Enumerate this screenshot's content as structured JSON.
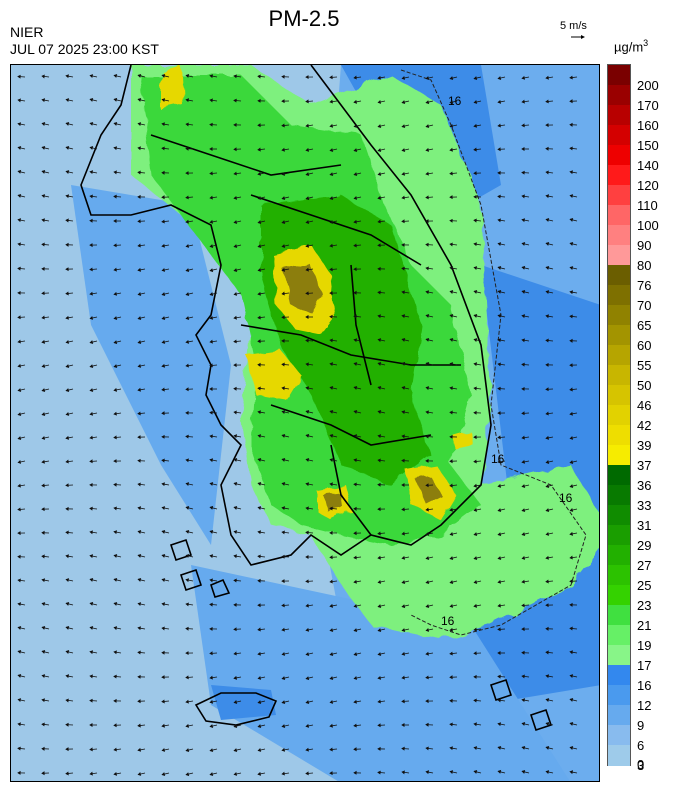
{
  "header": {
    "title": "PM-2.5",
    "organization": "NIER",
    "timestamp": "JUL 07 2025 23:00 KST",
    "wind_scale_label": "5 m/s",
    "unit_base": "µg/m",
    "unit_exp": "3"
  },
  "map": {
    "contour_label": "16"
  },
  "legend": {
    "labels": [
      "200",
      "170",
      "160",
      "150",
      "140",
      "120",
      "110",
      "100",
      "90",
      "80",
      "76",
      "70",
      "65",
      "60",
      "55",
      "50",
      "46",
      "42",
      "39",
      "37",
      "36",
      "33",
      "31",
      "29",
      "27",
      "25",
      "23",
      "21",
      "19",
      "17",
      "16",
      "12",
      "9",
      "6",
      "3",
      "0"
    ],
    "colors": [
      "#7a0000",
      "#9a0000",
      "#b80000",
      "#d40000",
      "#ee0000",
      "#ff1a1a",
      "#ff4040",
      "#ff6666",
      "#ff8080",
      "#ff9999",
      "#6b5e00",
      "#7e7000",
      "#908200",
      "#a39400",
      "#b6a500",
      "#c8b600",
      "#d6c400",
      "#e2d200",
      "#eede00",
      "#f6ec00",
      "#006a00",
      "#087a00",
      "#108c00",
      "#1a9e00",
      "#22b000",
      "#2cc200",
      "#34d200",
      "#40e040",
      "#66f066",
      "#88f588",
      "#3388ee",
      "#4a9aee",
      "#66aaee",
      "#88bbee",
      "#9ecbea"
    ],
    "level_colors": {
      "background": "#9ec8e8",
      "blue_mid": "#66aaee",
      "blue_dark": "#3d8ce8",
      "green_light": "#7ef07e",
      "green": "#3ad83a",
      "green_dark": "#22b000",
      "yellow": "#e6d800",
      "olive": "#8c7e10"
    }
  }
}
